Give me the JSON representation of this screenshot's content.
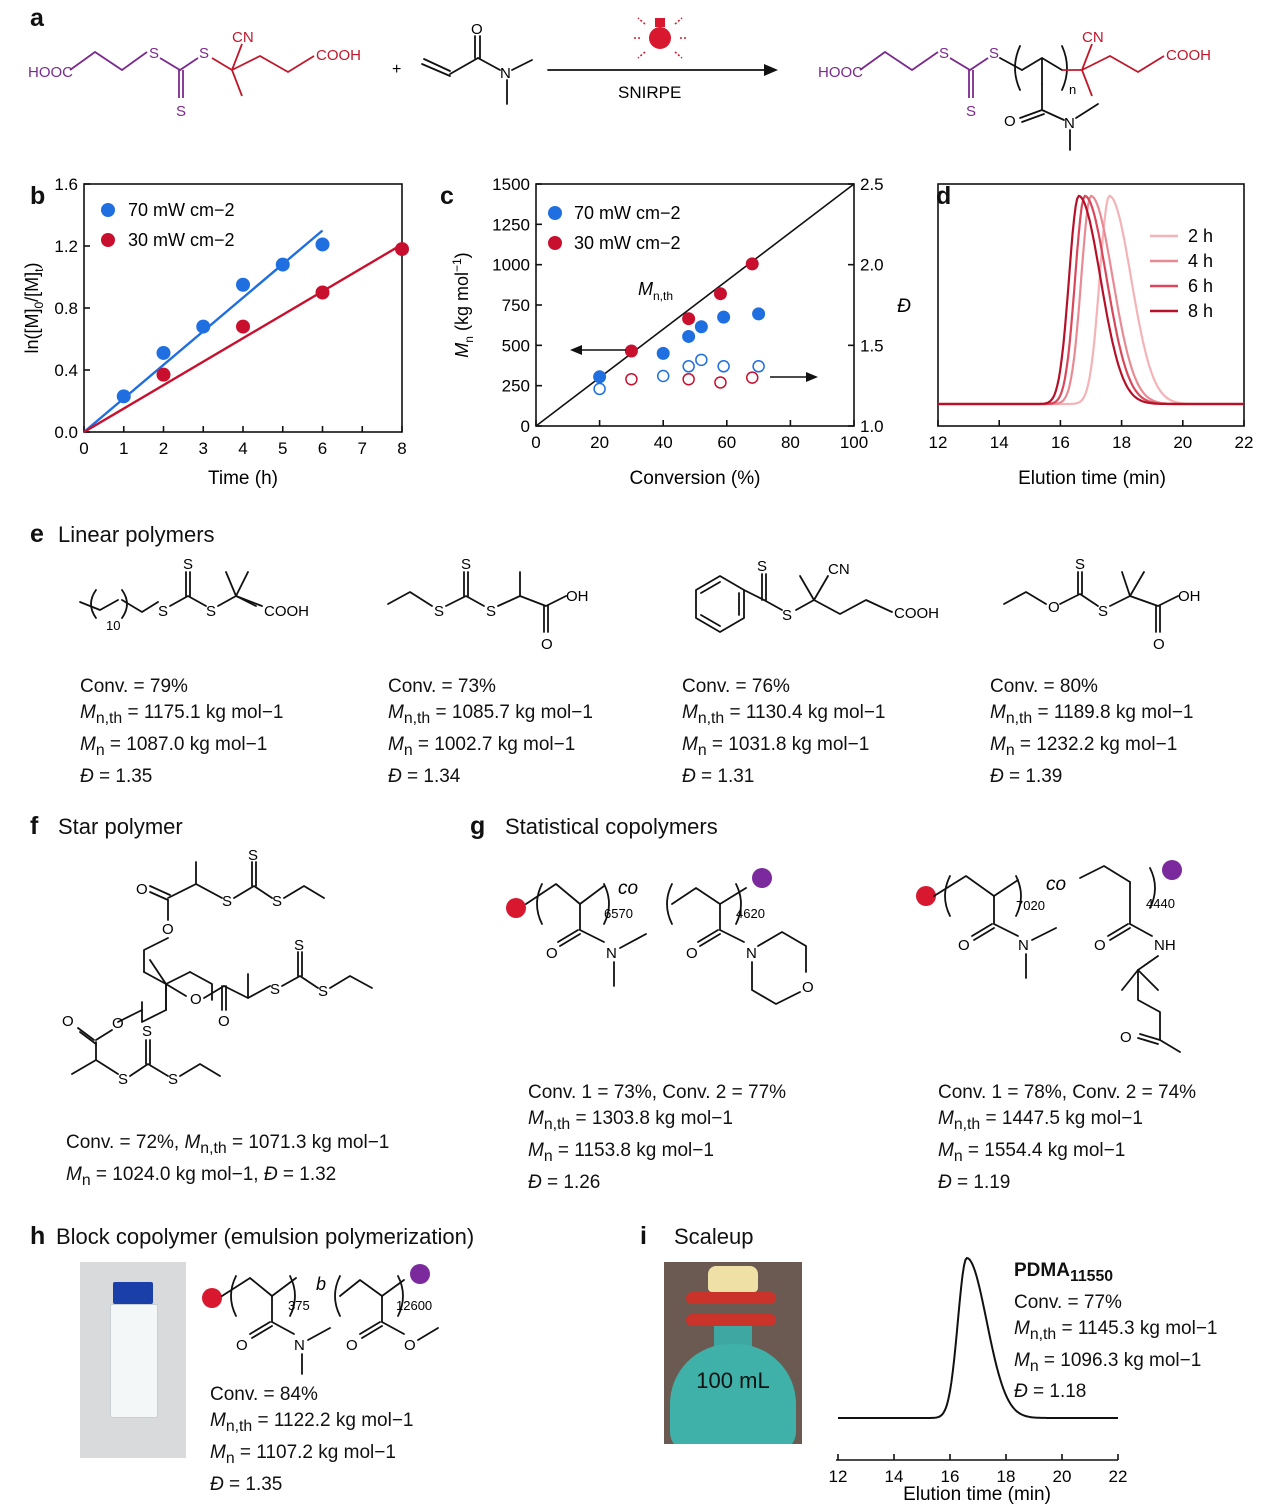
{
  "panels": {
    "a": "a",
    "b": "b",
    "c": "c",
    "d": "d",
    "e": "e",
    "f": "f",
    "g": "g",
    "h": "h",
    "i": "i"
  },
  "reaction": {
    "cta_left": "HOOC",
    "cta_right": "COOH",
    "s1": "S",
    "s2": "S",
    "s3": "S",
    "cn": "CN",
    "plus": "+",
    "monomer_o": "O",
    "monomer_n": "N",
    "arrow_label": "SNIRPE",
    "prod_left": "HOOC",
    "prod_right": "COOH",
    "prod_n": "n",
    "prod_o": "O",
    "prod_nn": "N",
    "prod_s": "S",
    "prod_s2": "S",
    "prod_s3": "S",
    "prod_cn": "CN"
  },
  "chart_data": [
    {
      "type": "scatter",
      "id": "b",
      "xlabel": "Time (h)",
      "ylabel": "ln([M]0/[M]t)",
      "xlim": [
        0,
        8
      ],
      "ylim": [
        0,
        1.6
      ],
      "xticks": [
        0,
        1,
        2,
        3,
        4,
        5,
        6,
        7,
        8
      ],
      "yticks": [
        0.0,
        0.4,
        0.8,
        1.2,
        1.6
      ],
      "ytick_labels": [
        "0.0",
        "0.4",
        "0.8",
        "1.2",
        "1.6"
      ],
      "series": [
        {
          "name": "70 mW cm−2",
          "color": "#1f6fe0",
          "x": [
            1,
            2,
            3,
            4,
            5,
            6
          ],
          "y": [
            0.23,
            0.51,
            0.68,
            0.95,
            1.08,
            1.21
          ],
          "fit": [
            [
              0,
              0
            ],
            [
              6,
              1.3
            ]
          ]
        },
        {
          "name": "30 mW cm−2",
          "color": "#c8102e",
          "x": [
            2,
            4,
            6,
            8
          ],
          "y": [
            0.37,
            0.68,
            0.9,
            1.18
          ],
          "fit": [
            [
              0,
              0
            ],
            [
              8,
              1.21
            ]
          ]
        }
      ]
    },
    {
      "type": "scatter",
      "id": "c",
      "xlabel": "Conversion (%)",
      "ylabel": "Mn (kg mol−1)",
      "y2label": "Đ",
      "xlim": [
        0,
        100
      ],
      "ylim": [
        0,
        1500
      ],
      "y2lim": [
        1.0,
        2.5
      ],
      "xticks": [
        0,
        20,
        40,
        60,
        80,
        100
      ],
      "yticks": [
        0,
        250,
        500,
        750,
        1000,
        1250,
        1500
      ],
      "y2ticks": [
        "1.0",
        "1.5",
        "2.0",
        "2.5"
      ],
      "theory_label": "Mn,th",
      "series": [
        {
          "name": "70 mW cm−2",
          "color": "#1f6fe0",
          "x": [
            20,
            40,
            48,
            52,
            59,
            70
          ],
          "mn": [
            305,
            450,
            555,
            615,
            675,
            695
          ],
          "d": [
            1.23,
            1.31,
            1.37,
            1.41,
            1.37,
            1.37
          ]
        },
        {
          "name": "30 mW cm−2",
          "color": "#c8102e",
          "x": [
            30,
            48,
            58,
            68
          ],
          "mn": [
            465,
            665,
            820,
            1005
          ],
          "d": [
            1.29,
            1.29,
            1.27,
            1.3
          ]
        }
      ]
    },
    {
      "type": "line",
      "id": "d",
      "xlabel": "Elution time (min)",
      "xlim": [
        12,
        22
      ],
      "xticks": [
        12,
        14,
        16,
        18,
        20,
        22
      ],
      "series": [
        {
          "name": "2 h",
          "color": "#f3b3b7",
          "peak": 17.6
        },
        {
          "name": "4 h",
          "color": "#e88a93",
          "peak": 17.0
        },
        {
          "name": "6 h",
          "color": "#d9475a",
          "peak": 16.8
        },
        {
          "name": "8 h",
          "color": "#b5122a",
          "peak": 16.6
        }
      ]
    },
    {
      "type": "line",
      "id": "i",
      "xlabel": "Elution time (min)",
      "xlim": [
        12,
        22
      ],
      "xticks": [
        12,
        14,
        16,
        18,
        20,
        22
      ],
      "series": [
        {
          "name": "PDMA11550",
          "color": "#111111",
          "peak": 16.6
        }
      ]
    }
  ],
  "e": {
    "title": "Linear polymers",
    "items": [
      {
        "conv": "Conv. = 79%",
        "mnth": "= 1175.1 kg mol−1",
        "mn": "= 1087.0 kg mol−1",
        "d": "= 1.35"
      },
      {
        "conv": "Conv. = 73%",
        "mnth": "= 1085.7 kg mol−1",
        "mn": "= 1002.7 kg mol−1",
        "d": "= 1.34"
      },
      {
        "conv": "Conv. = 76%",
        "mnth": "= 1130.4 kg mol−1",
        "mn": "= 1031.8 kg mol−1",
        "d": "= 1.31"
      },
      {
        "conv": "Conv. = 80%",
        "mnth": "= 1189.8 kg mol−1",
        "mn": "= 1232.2 kg mol−1",
        "d": "= 1.39"
      }
    ]
  },
  "f": {
    "title": "Star polymer",
    "line1": "Conv. = 72%,",
    "line1b": "= 1071.3 kg mol−1",
    "line2": "= 1024.0 kg mol−1,",
    "line2b": "= 1.32"
  },
  "g": {
    "title": "Statistical copolymers",
    "items": [
      {
        "conv": "Conv. 1 = 73%, Conv. 2 = 77%",
        "mnth": "= 1303.8 kg mol−1",
        "mn": "= 1153.8 kg mol−1",
        "d": "= 1.26",
        "n1": "6570",
        "n2": "4620"
      },
      {
        "conv": "Conv. 1 = 78%, Conv. 2 = 74%",
        "mnth": "= 1447.5 kg mol−1",
        "mn": "= 1554.4 kg mol−1",
        "d": "= 1.19",
        "n1": "7020",
        "n2": "4440"
      }
    ],
    "co": "co"
  },
  "h": {
    "title": "Block copolymer (emulsion polymerization)",
    "conv": "Conv. = 84%",
    "mnth": "= 1122.2 kg mol−1",
    "mn": "= 1107.2 kg mol−1",
    "d": "= 1.35",
    "n1": "375",
    "n2": "12600",
    "b": "b"
  },
  "i": {
    "title": "Scaleup",
    "flask_label": "100 mL",
    "name": "PDMA",
    "sub": "11550",
    "conv": "Conv. = 77%",
    "mnth": "= 1145.3 kg mol−1",
    "mn": "= 1096.3 kg mol−1",
    "d": "= 1.18"
  },
  "sym": {
    "mn": "M",
    "mn_sub": "n",
    "mnth_sub": "n,th",
    "d": "Đ"
  },
  "atoms": {
    "S": "S",
    "O": "O",
    "N": "N",
    "OH": "OH",
    "COOH": "COOH",
    "CN": "CN",
    "NH": "NH",
    "sub10": "10"
  }
}
